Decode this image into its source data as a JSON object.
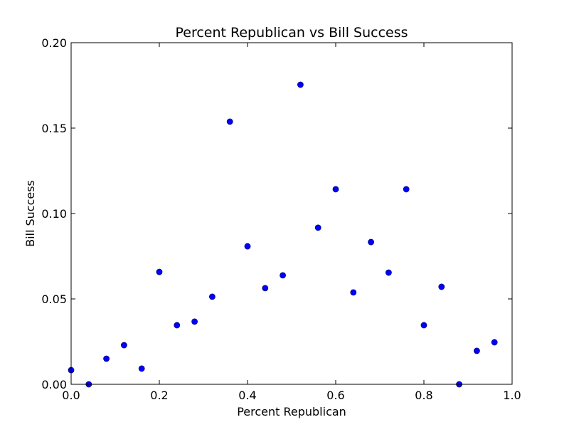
{
  "chart_data": {
    "type": "scatter",
    "title": "Percent Republican vs Bill Success",
    "xlabel": "Percent Republican",
    "ylabel": "Bill Success",
    "xlim": [
      0.0,
      1.0
    ],
    "ylim": [
      0.0,
      0.2
    ],
    "xticks": [
      0.0,
      0.2,
      0.4,
      0.6,
      0.8,
      1.0
    ],
    "xtick_labels": [
      "0.0",
      "0.2",
      "0.4",
      "0.6",
      "0.8",
      "1.0"
    ],
    "yticks": [
      0.0,
      0.05,
      0.1,
      0.15,
      0.2
    ],
    "ytick_labels": [
      "0.00",
      "0.05",
      "0.10",
      "0.15",
      "0.20"
    ],
    "grid": false,
    "marker_color": "#0000ff",
    "marker_edge_color": "#00007f",
    "points": [
      {
        "x": 0.0,
        "y": 0.0083
      },
      {
        "x": 0.04,
        "y": 0.0
      },
      {
        "x": 0.08,
        "y": 0.015
      },
      {
        "x": 0.12,
        "y": 0.0229
      },
      {
        "x": 0.16,
        "y": 0.0092
      },
      {
        "x": 0.2,
        "y": 0.0658
      },
      {
        "x": 0.24,
        "y": 0.0346
      },
      {
        "x": 0.28,
        "y": 0.0367
      },
      {
        "x": 0.32,
        "y": 0.0513
      },
      {
        "x": 0.36,
        "y": 0.1538
      },
      {
        "x": 0.4,
        "y": 0.0808
      },
      {
        "x": 0.44,
        "y": 0.0563
      },
      {
        "x": 0.48,
        "y": 0.0638
      },
      {
        "x": 0.52,
        "y": 0.1754
      },
      {
        "x": 0.56,
        "y": 0.0917
      },
      {
        "x": 0.6,
        "y": 0.1142
      },
      {
        "x": 0.64,
        "y": 0.0538
      },
      {
        "x": 0.68,
        "y": 0.0833
      },
      {
        "x": 0.72,
        "y": 0.0654
      },
      {
        "x": 0.76,
        "y": 0.1142
      },
      {
        "x": 0.8,
        "y": 0.0346
      },
      {
        "x": 0.84,
        "y": 0.0571
      },
      {
        "x": 0.88,
        "y": 0.0
      },
      {
        "x": 0.92,
        "y": 0.0196
      },
      {
        "x": 0.96,
        "y": 0.0246
      }
    ]
  }
}
